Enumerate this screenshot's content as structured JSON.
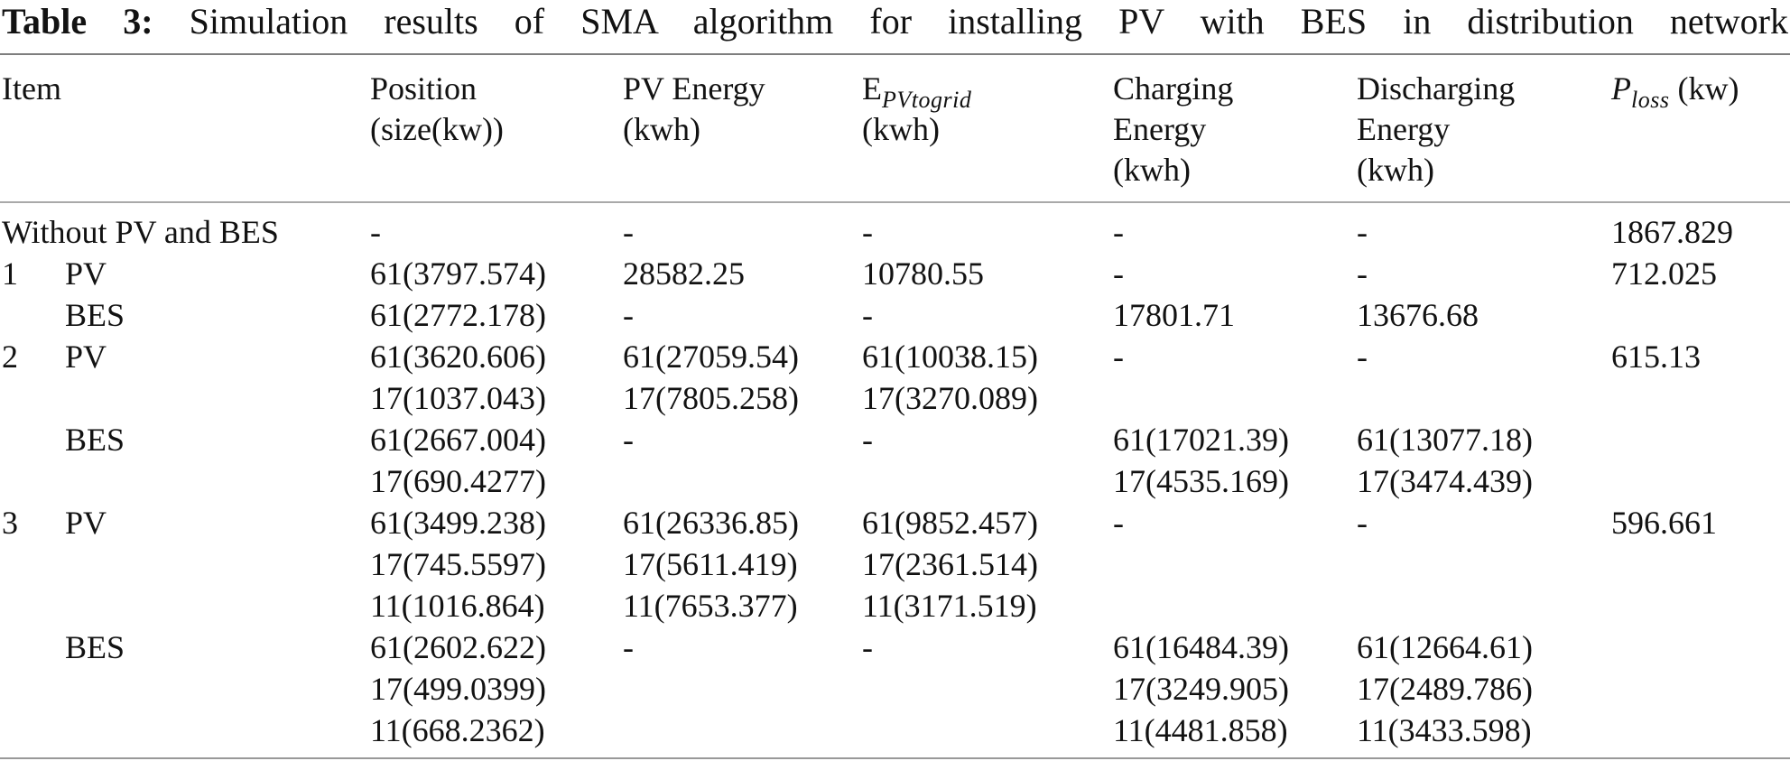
{
  "caption": {
    "label": "Table 3:",
    "text": "Simulation results of SMA algorithm for installing PV with BES in distribution network"
  },
  "header": {
    "item": "Item",
    "position": [
      "Position",
      "(size(kw))"
    ],
    "pv_energy": [
      "PV Energy",
      "(kwh)"
    ],
    "e_pvtogrid": {
      "base": "E",
      "sub": "PVtogrid",
      "unit": "(kwh)"
    },
    "charging": [
      "Charging",
      "Energy",
      "(kwh)"
    ],
    "discharging": [
      "Discharging",
      "Energy",
      "(kwh)"
    ],
    "p_loss": {
      "base": "P",
      "sub": "loss",
      "unit": "(kw)"
    }
  },
  "rows": [
    {
      "item": {
        "full": "Without  PV and BES"
      },
      "position": [
        "-"
      ],
      "pv_energy": [
        "-"
      ],
      "e_pvtogrid": [
        "-"
      ],
      "charging": [
        "-"
      ],
      "discharging": [
        "-"
      ],
      "p_loss": "1867.829"
    },
    {
      "item": {
        "num": "1",
        "label": "PV"
      },
      "position": [
        "61(3797.574)"
      ],
      "pv_energy": [
        "28582.25"
      ],
      "e_pvtogrid": [
        "10780.55"
      ],
      "charging": [
        "-"
      ],
      "discharging": [
        "-"
      ],
      "p_loss": "712.025"
    },
    {
      "item": {
        "num": "",
        "label": "BES"
      },
      "position": [
        "61(2772.178)"
      ],
      "pv_energy": [
        "-"
      ],
      "e_pvtogrid": [
        "-"
      ],
      "charging": [
        "17801.71"
      ],
      "discharging": [
        "13676.68"
      ],
      "p_loss": ""
    },
    {
      "item": {
        "num": "2",
        "label": "PV"
      },
      "position": [
        "61(3620.606)",
        "17(1037.043)"
      ],
      "pv_energy": [
        "61(27059.54)",
        "17(7805.258)"
      ],
      "e_pvtogrid": [
        "61(10038.15)",
        "17(3270.089)"
      ],
      "charging": [
        "-"
      ],
      "discharging": [
        "-"
      ],
      "p_loss": "615.13"
    },
    {
      "item": {
        "num": "",
        "label": "BES"
      },
      "position": [
        "61(2667.004)",
        "17(690.4277)"
      ],
      "pv_energy": [
        "-"
      ],
      "e_pvtogrid": [
        "-"
      ],
      "charging": [
        "61(17021.39)",
        "17(4535.169)"
      ],
      "discharging": [
        "61(13077.18)",
        "17(3474.439)"
      ],
      "p_loss": ""
    },
    {
      "item": {
        "num": "3",
        "label": "PV"
      },
      "position": [
        "61(3499.238)",
        "17(745.5597)",
        "11(1016.864)"
      ],
      "pv_energy": [
        "61(26336.85)",
        "17(5611.419)",
        "11(7653.377)"
      ],
      "e_pvtogrid": [
        "61(9852.457)",
        "17(2361.514)",
        "11(3171.519)"
      ],
      "charging": [
        "-"
      ],
      "discharging": [
        "-"
      ],
      "p_loss": "596.661"
    },
    {
      "item": {
        "num": "",
        "label": "BES"
      },
      "position": [
        "61(2602.622)",
        "17(499.0399)",
        "11(668.2362)"
      ],
      "pv_energy": [
        "-"
      ],
      "e_pvtogrid": [
        "-"
      ],
      "charging": [
        "61(16484.39)",
        "17(3249.905)",
        "11(4481.858)"
      ],
      "discharging": [
        "61(12664.61)",
        "17(2489.786)",
        "11(3433.598)"
      ],
      "p_loss": ""
    }
  ]
}
